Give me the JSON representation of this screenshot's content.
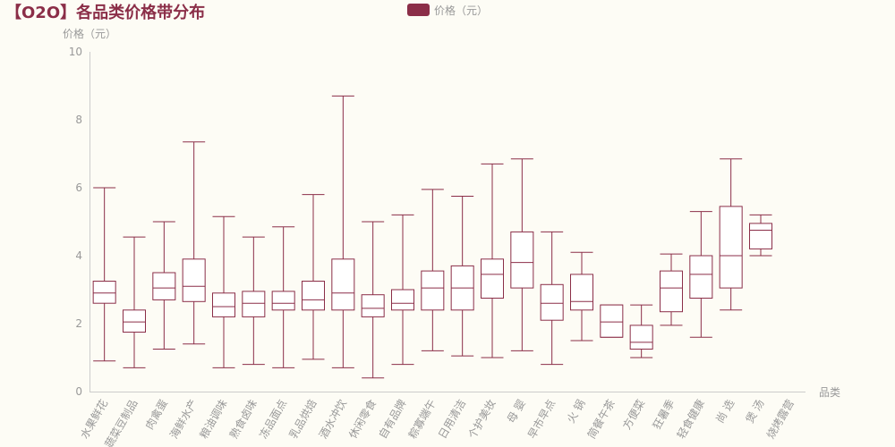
{
  "chart_data": {
    "type": "boxplot",
    "title": "【O2O】各品类价格带分布",
    "legend": {
      "label": "价格（元）",
      "color": "#8b2e48",
      "placement": "top-center"
    },
    "xlabel": "品类",
    "ylabel": "价格（元）",
    "ylim": [
      0,
      10
    ],
    "yticks": [
      0,
      2,
      4,
      6,
      8,
      10
    ],
    "grid": false,
    "colors": {
      "series": "#8b2e48",
      "axis": "#cccccc",
      "text": "#999999",
      "background": "#fdfcf5"
    },
    "categories": [
      "水果鲜花",
      "蔬菜豆制品",
      "肉禽蛋",
      "海鲜水产",
      "粮油调味",
      "熟食卤味",
      "冻品面点",
      "乳品烘焙",
      "酒水冲饮",
      "休闲零食",
      "自有品牌",
      "粽寡端午",
      "日用清洁",
      "个护美妆",
      "母 婴",
      "早市早点",
      "火 锅",
      "简餐午茶",
      "方便菜",
      "狂暑季",
      "轻食健康",
      "尚 选",
      "煲 汤",
      "烧烤露营"
    ],
    "series": [
      {
        "name": "价格（元）",
        "boxes": [
          {
            "min": 0.9,
            "q1": 2.6,
            "median": 2.9,
            "q3": 3.25,
            "max": 6.0
          },
          {
            "min": 0.7,
            "q1": 1.75,
            "median": 2.05,
            "q3": 2.4,
            "max": 4.55
          },
          {
            "min": 1.25,
            "q1": 2.7,
            "median": 3.05,
            "q3": 3.5,
            "max": 5.0
          },
          {
            "min": 1.4,
            "q1": 2.65,
            "median": 3.1,
            "q3": 3.9,
            "max": 7.35
          },
          {
            "min": 0.7,
            "q1": 2.2,
            "median": 2.5,
            "q3": 2.9,
            "max": 5.15
          },
          {
            "min": 0.8,
            "q1": 2.2,
            "median": 2.6,
            "q3": 2.95,
            "max": 4.55
          },
          {
            "min": 0.7,
            "q1": 2.4,
            "median": 2.6,
            "q3": 2.95,
            "max": 4.85
          },
          {
            "min": 0.95,
            "q1": 2.4,
            "median": 2.7,
            "q3": 3.25,
            "max": 5.8
          },
          {
            "min": 0.7,
            "q1": 2.4,
            "median": 2.9,
            "q3": 3.9,
            "max": 8.7
          },
          {
            "min": 0.4,
            "q1": 2.2,
            "median": 2.45,
            "q3": 2.85,
            "max": 5.0
          },
          {
            "min": 0.8,
            "q1": 2.4,
            "median": 2.6,
            "q3": 3.0,
            "max": 5.2
          },
          {
            "min": 1.2,
            "q1": 2.4,
            "median": 3.05,
            "q3": 3.55,
            "max": 5.95
          },
          {
            "min": 1.05,
            "q1": 2.4,
            "median": 3.05,
            "q3": 3.7,
            "max": 5.75
          },
          {
            "min": 1.0,
            "q1": 2.75,
            "median": 3.45,
            "q3": 3.9,
            "max": 6.7
          },
          {
            "min": 1.2,
            "q1": 3.05,
            "median": 3.8,
            "q3": 4.7,
            "max": 6.85
          },
          {
            "min": 0.8,
            "q1": 2.1,
            "median": 2.6,
            "q3": 3.15,
            "max": 4.7
          },
          {
            "min": 1.5,
            "q1": 2.4,
            "median": 2.65,
            "q3": 3.45,
            "max": 4.1
          },
          {
            "min": 1.6,
            "q1": 1.6,
            "median": 2.05,
            "q3": 2.55,
            "max": 2.55
          },
          {
            "min": 1.0,
            "q1": 1.25,
            "median": 1.45,
            "q3": 1.95,
            "max": 2.55
          },
          {
            "min": 1.95,
            "q1": 2.35,
            "median": 3.05,
            "q3": 3.55,
            "max": 4.05
          },
          {
            "min": 1.6,
            "q1": 2.75,
            "median": 3.45,
            "q3": 4.0,
            "max": 5.3
          },
          {
            "min": 2.4,
            "q1": 3.05,
            "median": 4.0,
            "q3": 5.45,
            "max": 6.85
          },
          {
            "min": 4.0,
            "q1": 4.2,
            "median": 4.75,
            "q3": 4.95,
            "max": 5.2
          },
          {
            "min": null,
            "q1": null,
            "median": null,
            "q3": null,
            "max": null
          }
        ]
      }
    ]
  }
}
